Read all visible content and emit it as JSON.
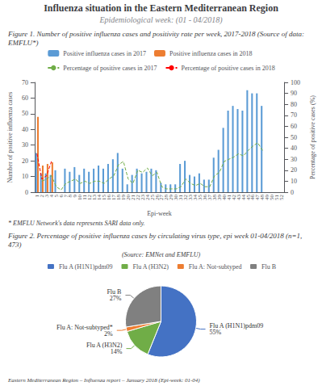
{
  "chart_data": [
    {
      "type": "bar",
      "title": "Influenza situation in the Eastern Mediterranean Region",
      "subtitle": "Epidemiological week: (01 - 04/2018)",
      "annotations": [
        "Figure 1. Number of positive influenza cases and positivity rate per week, 2017-2018 (Source of data: EMFLU*)",
        "* EMFLU Network's data represents SARI data only."
      ],
      "xlabel": "Epi-week",
      "ylabel": "Number of positive influenza cases",
      "y2label": "Percentage of positive cases (%)",
      "categories": [
        "1",
        "2",
        "3",
        "4",
        "5",
        "6",
        "7",
        "8",
        "9",
        "10",
        "11",
        "12",
        "13",
        "14",
        "15",
        "16",
        "17",
        "18",
        "19",
        "20",
        "21",
        "22",
        "23",
        "24",
        "25",
        "26",
        "27",
        "28",
        "29",
        "30",
        "31",
        "32",
        "33",
        "34",
        "35",
        "36",
        "37",
        "38",
        "39",
        "40",
        "41",
        "42",
        "43",
        "44",
        "45",
        "46",
        "47",
        "48",
        "49",
        "50",
        "51",
        "52"
      ],
      "series": [
        {
          "name": "Positive influenza cases in 2017",
          "type": "bar",
          "color": "#5b9bd5",
          "values": [
            25,
            12,
            12,
            11,
            14,
            0,
            15,
            13,
            16,
            11,
            15,
            13,
            15,
            17,
            15,
            18,
            21,
            25,
            15,
            5,
            11,
            15,
            12,
            13,
            15,
            14,
            6,
            5,
            5,
            5,
            18,
            20,
            11,
            10,
            12,
            8,
            8,
            22,
            27,
            41,
            52,
            55,
            53,
            52,
            65,
            63,
            63,
            55,
            0,
            0,
            0,
            0
          ]
        },
        {
          "name": "Positive influenza cases in 2018",
          "type": "bar",
          "color": "#ed7d31",
          "values": [
            48,
            17,
            18,
            19,
            0,
            0,
            0,
            0,
            0,
            0,
            0,
            0,
            0,
            0,
            0,
            0,
            0,
            0,
            0,
            0,
            0,
            0,
            0,
            0,
            0,
            0,
            0,
            0,
            0,
            0,
            0,
            0,
            0,
            0,
            0,
            0,
            0,
            0,
            0,
            0,
            0,
            0,
            0,
            0,
            0,
            0,
            0,
            0,
            0,
            0,
            0,
            0
          ]
        },
        {
          "name": "Percentage of positive cases in 2017",
          "type": "line",
          "axis": "y2",
          "line_style": "dashed",
          "color": "#70ad47",
          "values": [
            null,
            10,
            12,
            15,
            5,
            2,
            8,
            10,
            12,
            8,
            10,
            8,
            10,
            10,
            8,
            12,
            15,
            25,
            28,
            12,
            8,
            20,
            18,
            22,
            15,
            18,
            5,
            3,
            3,
            3,
            5,
            12,
            8,
            6,
            8,
            5,
            5,
            15,
            18,
            28,
            30,
            32,
            35,
            33,
            38,
            42,
            45,
            38,
            null,
            null,
            null,
            null
          ]
        },
        {
          "name": "Percentage of positive cases in 2018",
          "type": "line",
          "axis": "y2",
          "line_style": "dashed",
          "color": "#ff0000",
          "values": [
            35,
            12,
            15,
            28,
            null,
            null,
            null,
            null,
            null,
            null,
            null,
            null,
            null,
            null,
            null,
            null,
            null,
            null,
            null,
            null,
            null,
            null,
            null,
            null,
            null,
            null,
            null,
            null,
            null,
            null,
            null,
            null,
            null,
            null,
            null,
            null,
            null,
            null,
            null,
            null,
            null,
            null,
            null,
            null,
            null,
            null,
            null,
            null,
            null,
            null,
            null,
            null
          ]
        }
      ],
      "ylim": [
        0,
        70
      ],
      "yticks": [
        0,
        10,
        20,
        30,
        40,
        50,
        60,
        70
      ],
      "y2lim": [
        0,
        100
      ],
      "y2ticks": [
        0,
        10,
        20,
        30,
        40,
        50,
        60,
        70,
        80,
        90,
        100
      ],
      "grid": false,
      "legend": "top"
    },
    {
      "type": "pie",
      "title": "Figure 2. Percentage of positive influenza cases by circulating virus type, epi week 01-04/2018 (n=1,473)",
      "subtitle": "(Source: EMNet and EMFLU)",
      "annotations": [
        "Eastern Mediterranean Region – Influenza report – January 2018 (Epi-week: 01-04)"
      ],
      "categories": [
        "Flu A (H1N1)pdm09",
        "Flu A (H3N2)",
        "Flu A: Not-subtyped",
        "Flu B"
      ],
      "values": [
        55,
        14,
        2,
        27
      ],
      "value_labels": [
        "Flu A (H1N1)pdm09\n55%",
        "Flu A (H3N2)\n14%",
        "Flu A: Not-subtyped*\n2%",
        "Flu B\n27%"
      ],
      "data_labels": true,
      "colors": [
        "#4472c4",
        "#70ad47",
        "#ed7d31",
        "#808080"
      ],
      "legend": "top"
    }
  ]
}
